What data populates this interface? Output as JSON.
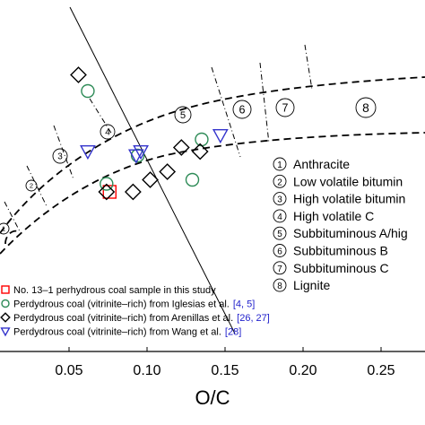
{
  "chart_data": {
    "type": "scatter",
    "xlabel": "O/C",
    "ylabel": "",
    "xlim": [
      0.0,
      0.28
    ],
    "x_ticks": [
      "0.05",
      "0.10",
      "0.15",
      "0.20",
      "0.25"
    ],
    "grid": false,
    "rank_markers": [
      {
        "num": "1",
        "label": "Anthracite"
      },
      {
        "num": "2",
        "label": "Low volatile bitumin"
      },
      {
        "num": "3",
        "label": "High volatile bitumin"
      },
      {
        "num": "4",
        "label": "High volatile C"
      },
      {
        "num": "5",
        "label": "Subbituminous A/hig"
      },
      {
        "num": "6",
        "label": "Subbituminous B"
      },
      {
        "num": "7",
        "label": "Subbituminous C"
      },
      {
        "num": "8",
        "label": "Lignite"
      }
    ],
    "legend": [
      {
        "text": "No. 13–1 perhydrous coal sample in this study",
        "ref": "",
        "marker": "square",
        "color": "#ff0000"
      },
      {
        "text": "Perdydrous coal (vitrinite–rich) from Iglesias et al.",
        "ref": "[4, 5]",
        "marker": "circle",
        "color": "#2e8b57"
      },
      {
        "text": "Perdydrous coal (vitrinite–rich) from Arenillas et al.",
        "ref": "[26, 27]",
        "marker": "diamond",
        "color": "#000000"
      },
      {
        "text": "Perdydrous coal (vitrinite–rich) from Wang et al.",
        "ref": "[28]",
        "marker": "triangle-down",
        "color": "#3333cc"
      }
    ],
    "series": [
      {
        "marker": "square",
        "color": "#ff0000",
        "x": [
          0.072
        ],
        "y": [
          0.6
        ]
      },
      {
        "marker": "circle",
        "color": "#2e8b57",
        "x": [
          0.058,
          0.07,
          0.125,
          0.131,
          0.09
        ],
        "y": [
          0.85,
          0.62,
          0.63,
          0.73,
          0.69
        ]
      },
      {
        "marker": "diamond",
        "color": "#000000",
        "x": [
          0.052,
          0.07,
          0.087,
          0.098,
          0.109,
          0.118,
          0.13
        ],
        "y": [
          0.89,
          0.6,
          0.6,
          0.63,
          0.65,
          0.71,
          0.7
        ]
      },
      {
        "marker": "triangle-down",
        "color": "#3333cc",
        "x": [
          0.058,
          0.089,
          0.092,
          0.143
        ],
        "y": [
          0.7,
          0.69,
          0.7,
          0.74
        ]
      }
    ]
  },
  "ref_color": "#2222cc"
}
